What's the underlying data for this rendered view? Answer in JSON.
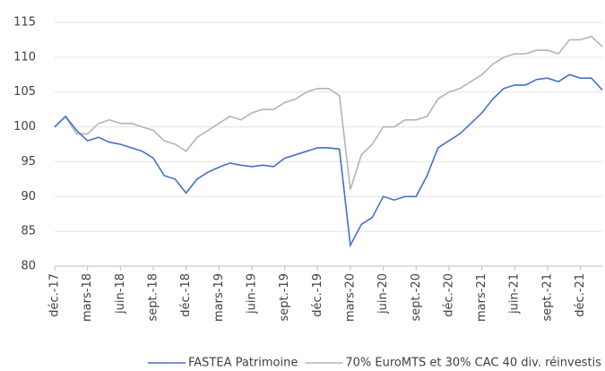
{
  "chart_data": {
    "type": "line",
    "categories": [
      "déc.-17",
      null,
      null,
      "mars-18",
      null,
      null,
      "juin-18",
      null,
      null,
      "sept.-18",
      null,
      null,
      "déc.-18",
      null,
      null,
      "mars-19",
      null,
      null,
      "juin-19",
      null,
      null,
      "sept.-19",
      null,
      null,
      "déc.-19",
      null,
      null,
      "mars-20",
      null,
      null,
      "juin-20",
      null,
      null,
      "sept.-20",
      null,
      null,
      "déc.-20",
      null,
      null,
      "mars-21",
      null,
      null,
      "juin-21",
      null,
      null,
      "sept.-21",
      null,
      null,
      "déc.-21",
      null,
      null
    ],
    "series": [
      {
        "name": "FASTEA Patrimoine",
        "color": "#4472c4",
        "values": [
          100,
          101.5,
          99.5,
          98,
          98.5,
          97.8,
          97.5,
          97,
          96.5,
          95.5,
          93,
          92.5,
          90.5,
          92.5,
          93.5,
          94.2,
          94.8,
          94.5,
          94.3,
          94.5,
          94.3,
          95.5,
          96,
          96.5,
          97,
          97,
          96.8,
          83,
          86,
          87,
          90,
          89.5,
          90,
          90,
          93,
          97,
          98,
          99,
          100.5,
          102,
          104,
          105.5,
          106,
          106,
          106.8,
          107,
          106.5,
          107.5,
          107,
          107,
          105.3
        ]
      },
      {
        "name": "70% EuroMTS et 30% CAC 40 div. réinvestis",
        "color": "#b4b4b4",
        "values": [
          100,
          101.5,
          99,
          99,
          100.5,
          101,
          100.5,
          100.5,
          100,
          99.5,
          98,
          97.5,
          96.5,
          98.5,
          99.5,
          100.5,
          101.5,
          101,
          102,
          102.5,
          102.5,
          103.5,
          104,
          105,
          105.5,
          105.5,
          104.5,
          91,
          96,
          97.5,
          100,
          100,
          101,
          101,
          101.5,
          104,
          105,
          105.5,
          106.5,
          107.5,
          109,
          110,
          110.5,
          110.5,
          111,
          111,
          110.5,
          112.5,
          112.5,
          113,
          111.5
        ]
      }
    ],
    "ylim": [
      80,
      115
    ],
    "yticks": [
      80,
      85,
      90,
      95,
      100,
      105,
      110,
      115
    ],
    "grid": true
  }
}
